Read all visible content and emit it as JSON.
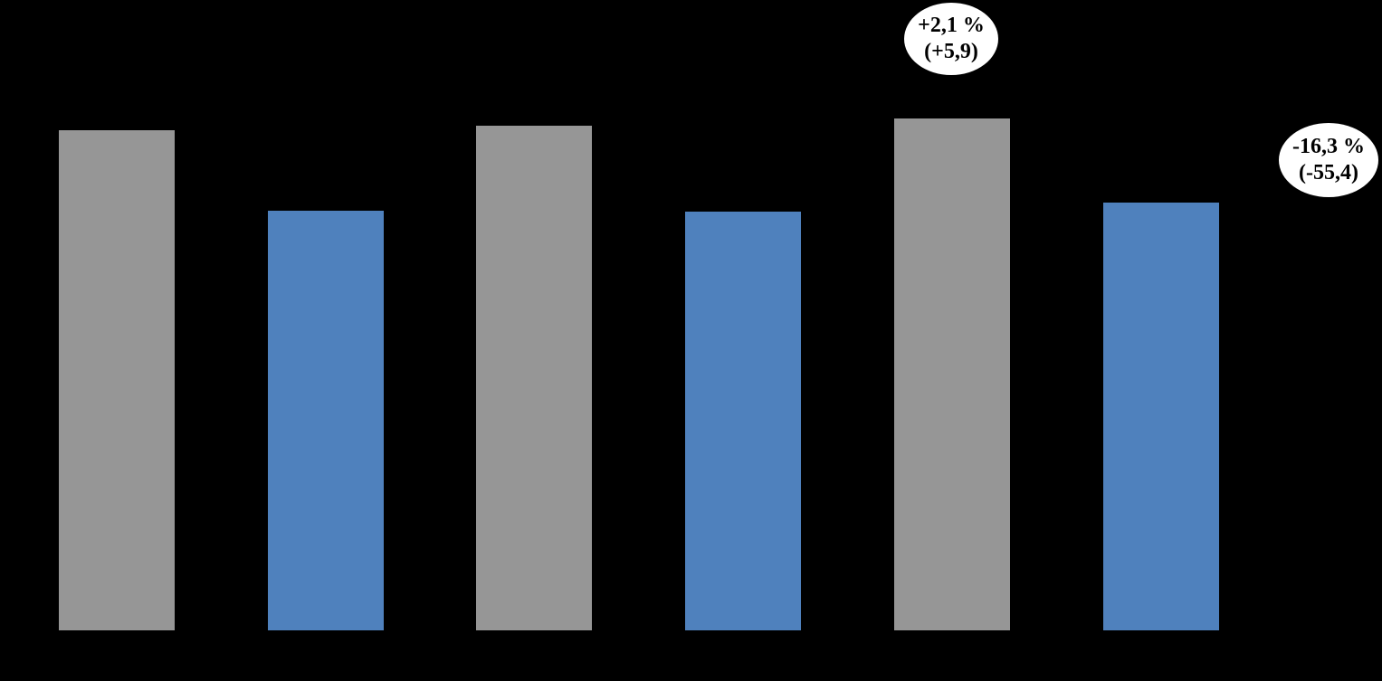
{
  "background_color": "#000000",
  "callout_fill_color": "#FFFFFF",
  "callout_text_color": "#000000",
  "chart_data": {
    "type": "bar",
    "title": "",
    "xlabel": "",
    "ylabel": "",
    "ylim": [
      0,
      419
    ],
    "grid": false,
    "legend": "none",
    "axes_visible": false,
    "colors": {
      "gray": "#969696",
      "blue": "#4F81BD"
    },
    "bars": [
      {
        "series": "gray",
        "value": 332
      },
      {
        "series": "blue",
        "value": 279
      },
      {
        "series": "gray",
        "value": 335
      },
      {
        "series": "blue",
        "value": 278
      },
      {
        "series": "gray",
        "value": 340
      },
      {
        "series": "blue",
        "value": 284
      }
    ],
    "annotations": [
      {
        "line1": "+2,1 %",
        "line2": "(+5,9)",
        "shape": "ellipse",
        "position": "above-bar-5"
      },
      {
        "line1": "-16,3 %",
        "line2": "(-55,4)",
        "shape": "ellipse",
        "position": "right-of-bar-6"
      }
    ]
  }
}
